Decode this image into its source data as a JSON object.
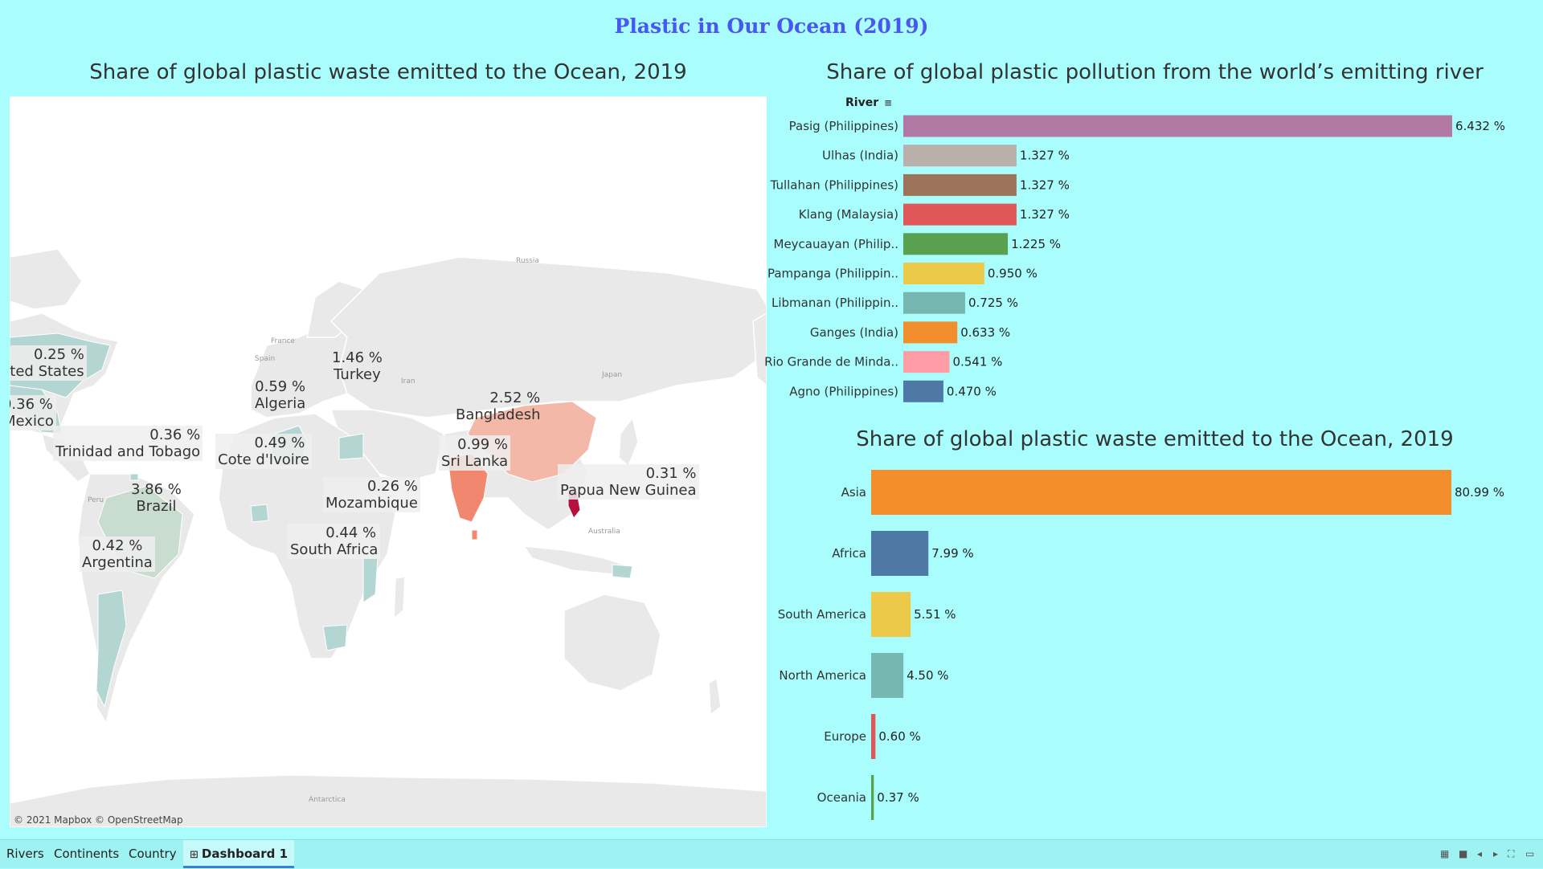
{
  "dashboard": {
    "title": "Plastic in Our Ocean (2019)"
  },
  "map": {
    "title": "Share of global plastic waste emitted to the Ocean, 2019",
    "credit": "© 2021 Mapbox © OpenStreetMap",
    "places": [
      "Russia",
      "France",
      "Spain",
      "Iran",
      "Japan",
      "Peru",
      "Australia",
      "Antarctica"
    ],
    "labels": [
      {
        "value": "0.25 %",
        "name": "ted States"
      },
      {
        "value": "0.36 %",
        "name": "Mexico"
      },
      {
        "value": "0.36 %",
        "name": "Trinidad and Tobago"
      },
      {
        "value": "3.86 %",
        "name": "Brazil"
      },
      {
        "value": "0.42 %",
        "name": "Argentina"
      },
      {
        "value": "0.59 %",
        "name": "Algeria"
      },
      {
        "value": "0.49 %",
        "name": "Cote d'Ivoire"
      },
      {
        "value": "1.46 %",
        "name": "Turkey"
      },
      {
        "value": "0.26 %",
        "name": "Mozambique"
      },
      {
        "value": "0.44 %",
        "name": "South Africa"
      },
      {
        "value": "2.52 %",
        "name": "Bangladesh"
      },
      {
        "value": "0.99 %",
        "name": "Sri Lanka"
      },
      {
        "value": "0.31 %",
        "name": "Papua New Guinea"
      }
    ]
  },
  "rivers": {
    "title": "Share of global plastic pollution from the world’s emitting river",
    "header": "River",
    "sort_icon": "sort-descending-icon",
    "chart_data": {
      "type": "bar",
      "orientation": "horizontal",
      "categories": [
        "Pasig (Philippines)",
        "Ulhas (India)",
        "Tullahan (Philippines)",
        "Klang (Malaysia)",
        "Meycauayan (Philip..",
        "Pampanga (Philippin..",
        "Libmanan (Philippin..",
        "Ganges (India)",
        "Rio Grande de Minda..",
        "Agno (Philippines)"
      ],
      "values": [
        6.432,
        1.327,
        1.327,
        1.327,
        1.225,
        0.95,
        0.725,
        0.633,
        0.541,
        0.47
      ],
      "value_labels": [
        "6.432 %",
        "1.327 %",
        "1.327 %",
        "1.327 %",
        "1.225 %",
        "0.950 %",
        "0.725 %",
        "0.633 %",
        "0.541 %",
        "0.470 %"
      ],
      "colors": [
        "#b179a4",
        "#b9b0ab",
        "#9c7459",
        "#e15759",
        "#59a14f",
        "#edc949",
        "#76b7b2",
        "#f28e2b",
        "#ff9da7",
        "#4e79a7"
      ],
      "xlim": [
        0,
        6.432
      ]
    }
  },
  "continents": {
    "title": "Share of global plastic waste emitted to the Ocean, 2019",
    "chart_data": {
      "type": "bar",
      "orientation": "horizontal",
      "categories": [
        "Asia",
        "Africa",
        "South America",
        "North America",
        "Europe",
        "Oceania"
      ],
      "values": [
        80.99,
        7.99,
        5.51,
        4.5,
        0.6,
        0.37
      ],
      "value_labels": [
        "80.99 %",
        "7.99 %",
        "5.51 %",
        "4.50 %",
        "0.60 %",
        "0.37 %"
      ],
      "colors": [
        "#f28e2b",
        "#4e79a7",
        "#edc949",
        "#76b7b2",
        "#e15759",
        "#59a14f"
      ],
      "xlim": [
        0,
        80.99
      ]
    }
  },
  "tabs": [
    {
      "label": "Rivers",
      "active": false
    },
    {
      "label": "Continents",
      "active": false
    },
    {
      "label": "Country",
      "active": false
    },
    {
      "label": "Dashboard 1",
      "active": true
    }
  ],
  "controls": [
    "grid-view-icon",
    "filmstrip-icon",
    "prev-icon",
    "next-icon",
    "fullscreen-icon",
    "present-icon"
  ]
}
